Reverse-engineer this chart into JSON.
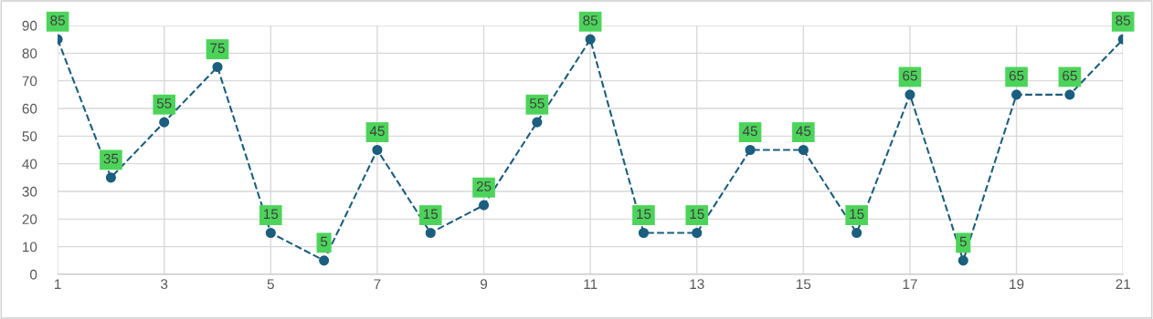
{
  "chart_data": {
    "type": "line",
    "x": [
      1,
      2,
      3,
      4,
      5,
      6,
      7,
      8,
      9,
      10,
      11,
      12,
      13,
      14,
      15,
      16,
      17,
      18,
      19,
      20,
      21
    ],
    "series": [
      {
        "color": "#1b5e7e",
        "values": [
          85,
          35,
          55,
          75,
          15,
          5,
          45,
          15,
          25,
          55,
          85,
          15,
          15,
          45,
          45,
          15,
          65,
          5,
          65,
          65,
          85
        ]
      }
    ],
    "xlim": [
      1,
      21
    ],
    "xticks": [
      1,
      3,
      5,
      7,
      9,
      11,
      13,
      15,
      17,
      19,
      21
    ],
    "ylim": [
      0,
      90
    ],
    "yticks": [
      0,
      10,
      20,
      30,
      40,
      50,
      60,
      70,
      80,
      90
    ],
    "grid": true,
    "marker": "circle",
    "line_style": "dashed",
    "data_labels": true
  }
}
